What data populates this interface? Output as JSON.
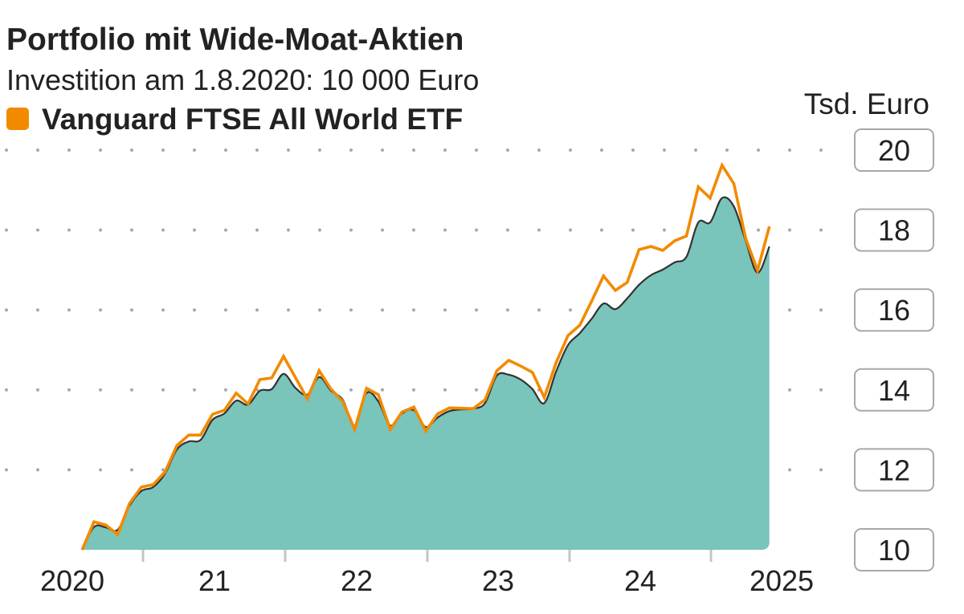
{
  "chart_data": {
    "type": "area",
    "title": "Portfolio mit Wide-Moat-Aktien",
    "subtitle": "Investition am 1.8.2020: 10 000 Euro",
    "ylabel": "Tsd. Euro",
    "xlabel": "",
    "ylim": [
      10,
      20
    ],
    "yticks": [
      "10",
      "12",
      "14",
      "16",
      "18",
      "20"
    ],
    "xticks": [
      "2020",
      "21",
      "22",
      "23",
      "24",
      "2025"
    ],
    "grid": "horizontal dotted",
    "legend_position": "top-left",
    "x": [
      "2020-08",
      "2020-09",
      "2020-10",
      "2020-11",
      "2020-12",
      "2021-01",
      "2021-02",
      "2021-03",
      "2021-04",
      "2021-05",
      "2021-06",
      "2021-07",
      "2021-08",
      "2021-09",
      "2021-10",
      "2021-11",
      "2021-12",
      "2022-01",
      "2022-02",
      "2022-03",
      "2022-04",
      "2022-05",
      "2022-06",
      "2022-07",
      "2022-08",
      "2022-09",
      "2022-10",
      "2022-11",
      "2022-12",
      "2023-01",
      "2023-02",
      "2023-03",
      "2023-04",
      "2023-05",
      "2023-06",
      "2023-07",
      "2023-08",
      "2023-09",
      "2023-10",
      "2023-11",
      "2023-12",
      "2024-01",
      "2024-02",
      "2024-03",
      "2024-04",
      "2024-05",
      "2024-06",
      "2024-07",
      "2024-08",
      "2024-09",
      "2024-10",
      "2024-11",
      "2024-12",
      "2025-01",
      "2025-02",
      "2025-03",
      "2025-04",
      "2025-05",
      "2025-06"
    ],
    "series": [
      {
        "style": "area",
        "color": "#79c4bb",
        "values": [
          10.0,
          10.57,
          10.56,
          10.5,
          11.1,
          11.47,
          11.57,
          11.91,
          12.51,
          12.71,
          12.75,
          13.25,
          13.41,
          13.73,
          13.63,
          13.98,
          14.02,
          14.4,
          14.05,
          13.88,
          14.32,
          13.98,
          13.75,
          13.11,
          13.92,
          13.71,
          13.11,
          13.41,
          13.49,
          13.07,
          13.31,
          13.47,
          13.51,
          13.53,
          13.67,
          14.36,
          14.38,
          14.26,
          14.02,
          13.67,
          14.46,
          15.12,
          15.42,
          15.78,
          16.16,
          16.02,
          16.29,
          16.63,
          16.87,
          17.01,
          17.19,
          17.33,
          18.19,
          18.19,
          18.8,
          18.59,
          17.73,
          16.93,
          17.59
        ]
      },
      {
        "name": "Vanguard FTSE All World ETF",
        "style": "line",
        "color": "#f28a00",
        "values": [
          10.0,
          10.7,
          10.62,
          10.38,
          11.16,
          11.57,
          11.63,
          11.95,
          12.61,
          12.87,
          12.87,
          13.39,
          13.49,
          13.92,
          13.65,
          14.26,
          14.3,
          14.84,
          14.31,
          13.78,
          14.48,
          14.02,
          13.71,
          13.01,
          14.04,
          13.88,
          13.01,
          13.45,
          13.57,
          12.97,
          13.4,
          13.55,
          13.54,
          13.53,
          13.75,
          14.48,
          14.74,
          14.6,
          14.44,
          13.81,
          14.68,
          15.36,
          15.62,
          16.22,
          16.85,
          16.49,
          16.69,
          17.51,
          17.59,
          17.49,
          17.73,
          17.85,
          19.08,
          18.8,
          19.62,
          19.16,
          17.79,
          16.99,
          18.09
        ]
      }
    ]
  }
}
